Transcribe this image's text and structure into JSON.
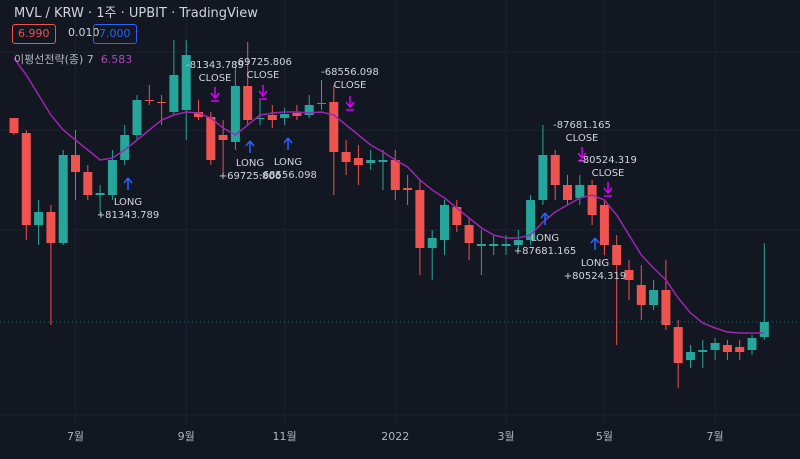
{
  "header": {
    "title": "MVL / KRW · 1주 · UPBIT · TradingView",
    "bid": "6.990",
    "spread": "0.010",
    "ask": "7.000",
    "indicator": "이평선전략(종) 7",
    "indicator_value": "6.583"
  },
  "chart_data": {
    "type": "candlestick",
    "categories": [
      null,
      null,
      null,
      null,
      null,
      "7월",
      null,
      null,
      null,
      null,
      null,
      null,
      null,
      null,
      "9월",
      null,
      null,
      null,
      null,
      null,
      null,
      null,
      "11월",
      null,
      null,
      null,
      null,
      null,
      null,
      null,
      null,
      "2022",
      null,
      null,
      null,
      null,
      null,
      null,
      null,
      null,
      "3월",
      null,
      null,
      null,
      null,
      null,
      null,
      null,
      "5월",
      null,
      null,
      null,
      null,
      null,
      null,
      null,
      null,
      "7월",
      null,
      null,
      null,
      null
    ],
    "open": [
      6.82,
      6.67,
      5.75,
      5.88,
      5.57,
      6.45,
      6.28,
      6.05,
      6.05,
      6.4,
      6.65,
      7.0,
      6.98,
      6.88,
      6.9,
      6.88,
      6.83,
      6.65,
      6.58,
      7.14,
      6.81,
      6.85,
      6.82,
      6.87,
      6.85,
      6.96,
      6.98,
      6.48,
      6.42,
      6.37,
      6.38,
      6.4,
      6.12,
      6.1,
      5.52,
      5.6,
      5.93,
      5.75,
      5.54,
      5.54,
      5.54,
      5.55,
      5.6,
      6.0,
      6.45,
      6.15,
      6.02,
      6.15,
      5.95,
      5.55,
      5.3,
      5.15,
      4.95,
      5.1,
      4.73,
      4.4,
      4.48,
      4.5,
      4.55,
      4.53,
      4.5,
      4.63
    ],
    "high": [
      6.82,
      6.7,
      6.0,
      5.95,
      6.5,
      6.7,
      6.35,
      6.15,
      6.5,
      6.75,
      7.05,
      7.15,
      7.05,
      7.6,
      7.6,
      7.0,
      6.88,
      6.8,
      7.35,
      7.58,
      7.0,
      6.95,
      6.92,
      6.95,
      7.05,
      7.2,
      7.15,
      6.6,
      6.55,
      6.5,
      6.5,
      6.5,
      6.25,
      6.2,
      5.7,
      6.0,
      6.0,
      5.82,
      5.7,
      5.65,
      5.65,
      5.7,
      6.05,
      6.75,
      6.5,
      6.25,
      6.25,
      6.2,
      6.0,
      5.65,
      5.4,
      5.35,
      5.2,
      5.4,
      4.8,
      4.55,
      4.6,
      4.62,
      4.6,
      4.6,
      4.65,
      5.57
    ],
    "low": [
      6.65,
      5.6,
      5.55,
      4.75,
      5.55,
      6.0,
      6.0,
      5.85,
      6.0,
      6.35,
      6.6,
      6.95,
      6.75,
      6.85,
      6.6,
      6.8,
      6.35,
      6.25,
      6.5,
      6.75,
      6.75,
      6.72,
      6.75,
      6.8,
      6.82,
      6.9,
      6.05,
      6.25,
      6.15,
      6.3,
      6.1,
      6.0,
      5.95,
      5.25,
      5.2,
      5.45,
      5.68,
      5.4,
      5.25,
      5.45,
      5.45,
      5.5,
      5.55,
      5.95,
      6.0,
      5.95,
      5.95,
      5.75,
      5.45,
      4.55,
      5.0,
      4.8,
      4.9,
      4.7,
      4.12,
      4.32,
      4.32,
      4.4,
      4.4,
      4.4,
      4.45,
      4.6
    ],
    "close": [
      6.67,
      5.75,
      5.88,
      5.57,
      6.45,
      6.28,
      6.05,
      6.07,
      6.4,
      6.65,
      7.0,
      6.99,
      6.97,
      7.25,
      7.45,
      6.83,
      6.4,
      6.6,
      7.14,
      6.8,
      6.82,
      6.8,
      6.86,
      6.84,
      6.95,
      6.97,
      6.48,
      6.38,
      6.35,
      6.4,
      6.4,
      6.1,
      6.1,
      5.52,
      5.62,
      5.95,
      5.75,
      5.57,
      5.56,
      5.56,
      5.56,
      5.6,
      6.0,
      6.45,
      6.15,
      6.0,
      6.15,
      5.85,
      5.55,
      5.35,
      5.2,
      4.95,
      5.1,
      4.75,
      4.37,
      4.48,
      4.5,
      4.57,
      4.48,
      4.48,
      4.62,
      4.78
    ],
    "up_color": "#26a69a",
    "down_color": "#ef5350",
    "ma": {
      "color": "#9c27b0",
      "values": [
        7.42,
        7.25,
        7.05,
        6.85,
        6.7,
        6.6,
        6.5,
        6.4,
        6.42,
        6.5,
        6.6,
        6.7,
        6.8,
        6.85,
        6.88,
        6.87,
        6.82,
        6.72,
        6.65,
        6.75,
        6.85,
        6.87,
        6.88,
        6.88,
        6.87,
        6.88,
        6.85,
        6.75,
        6.65,
        6.55,
        6.48,
        6.4,
        6.33,
        6.2,
        6.1,
        6.02,
        5.92,
        5.82,
        5.72,
        5.65,
        5.62,
        5.62,
        5.65,
        5.78,
        5.88,
        5.95,
        6.02,
        6.05,
        6.0,
        5.85,
        5.65,
        5.45,
        5.32,
        5.2,
        5.02,
        4.87,
        4.77,
        4.72,
        4.68,
        4.67,
        4.67,
        4.67
      ]
    },
    "ylim": [
      3.7,
      8.0
    ],
    "annotations": [
      {
        "lines": [
          "LONG",
          "+81343.789"
        ]
      },
      {
        "lines": [
          "-81343.789",
          "CLOSE"
        ]
      },
      {
        "lines": [
          "LONG",
          "+69725.806"
        ]
      },
      {
        "lines": [
          "-69725.806",
          "CLOSE"
        ]
      },
      {
        "lines": [
          "LONG",
          "-68556.098"
        ]
      },
      {
        "lines": [
          "-68556.098",
          "CLOSE"
        ]
      },
      {
        "lines": [
          "LONG",
          "+87681.165"
        ]
      },
      {
        "lines": [
          "-87681.165",
          "CLOSE"
        ]
      },
      {
        "lines": [
          "LONG",
          "+80524.319"
        ]
      },
      {
        "lines": [
          "-80524.319",
          "CLOSE"
        ]
      }
    ]
  }
}
